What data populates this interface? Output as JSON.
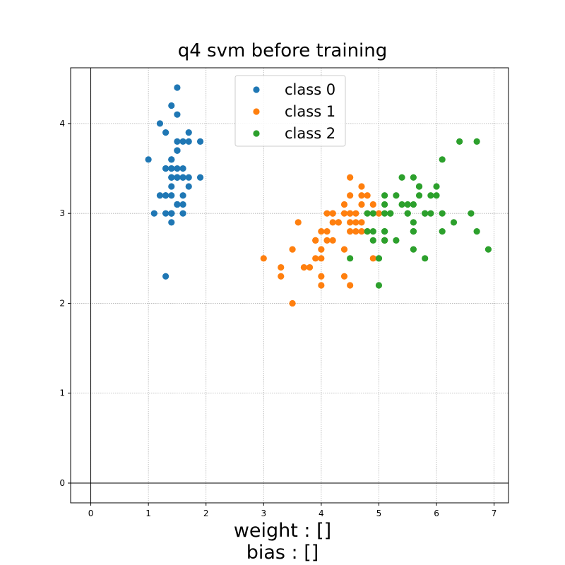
{
  "chart_data": {
    "type": "scatter",
    "title": "q4 svm before training",
    "xlabel": "",
    "ylabel": "",
    "xlim": [
      -0.35,
      7.25
    ],
    "ylim": [
      -0.22,
      4.62
    ],
    "xticks": [
      0,
      1,
      2,
      3,
      4,
      5,
      6,
      7
    ],
    "yticks": [
      0,
      1,
      2,
      3,
      4
    ],
    "grid": true,
    "legend_position": "top-center",
    "series": [
      {
        "name": "class 0",
        "color": "#1f77b4",
        "points": [
          [
            1.4,
            3.5
          ],
          [
            1.4,
            3.0
          ],
          [
            1.3,
            3.2
          ],
          [
            1.5,
            3.1
          ],
          [
            1.4,
            3.6
          ],
          [
            1.7,
            3.9
          ],
          [
            1.4,
            3.4
          ],
          [
            1.5,
            3.4
          ],
          [
            1.4,
            2.9
          ],
          [
            1.5,
            3.1
          ],
          [
            1.5,
            3.7
          ],
          [
            1.6,
            3.4
          ],
          [
            1.4,
            3.0
          ],
          [
            1.1,
            3.0
          ],
          [
            1.2,
            4.0
          ],
          [
            1.5,
            4.4
          ],
          [
            1.3,
            3.9
          ],
          [
            1.4,
            3.5
          ],
          [
            1.7,
            3.8
          ],
          [
            1.5,
            3.8
          ],
          [
            1.7,
            3.4
          ],
          [
            1.5,
            3.7
          ],
          [
            1.0,
            3.6
          ],
          [
            1.7,
            3.3
          ],
          [
            1.9,
            3.4
          ],
          [
            1.6,
            3.0
          ],
          [
            1.6,
            3.4
          ],
          [
            1.5,
            3.5
          ],
          [
            1.4,
            3.4
          ],
          [
            1.6,
            3.2
          ],
          [
            1.6,
            3.1
          ],
          [
            1.5,
            3.4
          ],
          [
            1.5,
            4.1
          ],
          [
            1.4,
            4.2
          ],
          [
            1.5,
            3.1
          ],
          [
            1.2,
            3.2
          ],
          [
            1.3,
            3.5
          ],
          [
            1.4,
            3.6
          ],
          [
            1.3,
            3.0
          ],
          [
            1.5,
            3.4
          ],
          [
            1.3,
            3.5
          ],
          [
            1.3,
            2.3
          ],
          [
            1.3,
            3.2
          ],
          [
            1.6,
            3.5
          ],
          [
            1.9,
            3.8
          ],
          [
            1.4,
            3.0
          ],
          [
            1.6,
            3.8
          ],
          [
            1.4,
            3.2
          ],
          [
            1.5,
            3.7
          ],
          [
            1.4,
            3.3
          ]
        ]
      },
      {
        "name": "class 1",
        "color": "#ff7f0e",
        "points": [
          [
            4.7,
            3.2
          ],
          [
            4.5,
            3.2
          ],
          [
            4.9,
            3.1
          ],
          [
            4.0,
            2.3
          ],
          [
            4.6,
            2.8
          ],
          [
            4.5,
            2.8
          ],
          [
            4.7,
            3.3
          ],
          [
            3.3,
            2.4
          ],
          [
            4.6,
            2.9
          ],
          [
            3.9,
            2.7
          ],
          [
            3.5,
            2.0
          ],
          [
            4.2,
            3.0
          ],
          [
            4.0,
            2.2
          ],
          [
            4.7,
            2.9
          ],
          [
            3.6,
            2.9
          ],
          [
            4.4,
            3.1
          ],
          [
            4.5,
            3.0
          ],
          [
            4.1,
            2.7
          ],
          [
            4.5,
            2.2
          ],
          [
            3.9,
            2.5
          ],
          [
            4.8,
            3.2
          ],
          [
            4.0,
            2.8
          ],
          [
            4.9,
            2.5
          ],
          [
            4.7,
            2.8
          ],
          [
            4.3,
            2.9
          ],
          [
            4.4,
            3.0
          ],
          [
            4.8,
            2.8
          ],
          [
            5.0,
            3.0
          ],
          [
            4.5,
            2.9
          ],
          [
            3.5,
            2.6
          ],
          [
            3.8,
            2.4
          ],
          [
            3.7,
            2.4
          ],
          [
            3.9,
            2.7
          ],
          [
            5.1,
            2.7
          ],
          [
            4.5,
            3.0
          ],
          [
            4.5,
            3.4
          ],
          [
            4.7,
            3.1
          ],
          [
            4.4,
            2.3
          ],
          [
            4.1,
            3.0
          ],
          [
            4.0,
            2.5
          ],
          [
            4.4,
            2.6
          ],
          [
            4.6,
            3.0
          ],
          [
            4.0,
            2.6
          ],
          [
            3.3,
            2.3
          ],
          [
            4.2,
            2.7
          ],
          [
            4.2,
            3.0
          ],
          [
            4.2,
            2.9
          ],
          [
            4.3,
            2.9
          ],
          [
            3.0,
            2.5
          ],
          [
            4.1,
            2.8
          ]
        ]
      },
      {
        "name": "class 2",
        "color": "#2ca02c",
        "points": [
          [
            6.0,
            3.3
          ],
          [
            5.1,
            2.7
          ],
          [
            5.9,
            3.0
          ],
          [
            5.6,
            2.9
          ],
          [
            5.8,
            3.0
          ],
          [
            6.6,
            3.0
          ],
          [
            4.5,
            2.5
          ],
          [
            6.3,
            2.9
          ],
          [
            5.8,
            2.5
          ],
          [
            6.1,
            3.6
          ],
          [
            5.1,
            3.2
          ],
          [
            5.3,
            2.7
          ],
          [
            5.5,
            3.0
          ],
          [
            5.0,
            2.5
          ],
          [
            5.1,
            2.8
          ],
          [
            5.3,
            3.2
          ],
          [
            5.5,
            3.0
          ],
          [
            6.7,
            3.8
          ],
          [
            6.9,
            2.6
          ],
          [
            5.0,
            2.2
          ],
          [
            5.7,
            3.2
          ],
          [
            4.9,
            2.8
          ],
          [
            6.7,
            2.8
          ],
          [
            4.9,
            2.7
          ],
          [
            5.7,
            3.3
          ],
          [
            6.0,
            3.2
          ],
          [
            4.8,
            2.8
          ],
          [
            4.9,
            3.0
          ],
          [
            5.6,
            2.8
          ],
          [
            5.8,
            3.0
          ],
          [
            6.1,
            2.8
          ],
          [
            6.4,
            3.8
          ],
          [
            5.6,
            2.8
          ],
          [
            5.1,
            2.8
          ],
          [
            5.6,
            2.6
          ],
          [
            6.1,
            3.0
          ],
          [
            5.6,
            3.4
          ],
          [
            5.5,
            3.1
          ],
          [
            4.8,
            3.0
          ],
          [
            5.4,
            3.1
          ],
          [
            5.6,
            3.1
          ],
          [
            5.1,
            3.1
          ],
          [
            5.1,
            2.7
          ],
          [
            5.9,
            3.2
          ],
          [
            5.7,
            3.3
          ],
          [
            5.2,
            3.0
          ],
          [
            5.0,
            2.5
          ],
          [
            5.2,
            3.0
          ],
          [
            5.4,
            3.4
          ],
          [
            5.1,
            3.0
          ]
        ]
      }
    ],
    "annotations": {
      "weight": "weight : []",
      "bias": "bias : []"
    }
  }
}
